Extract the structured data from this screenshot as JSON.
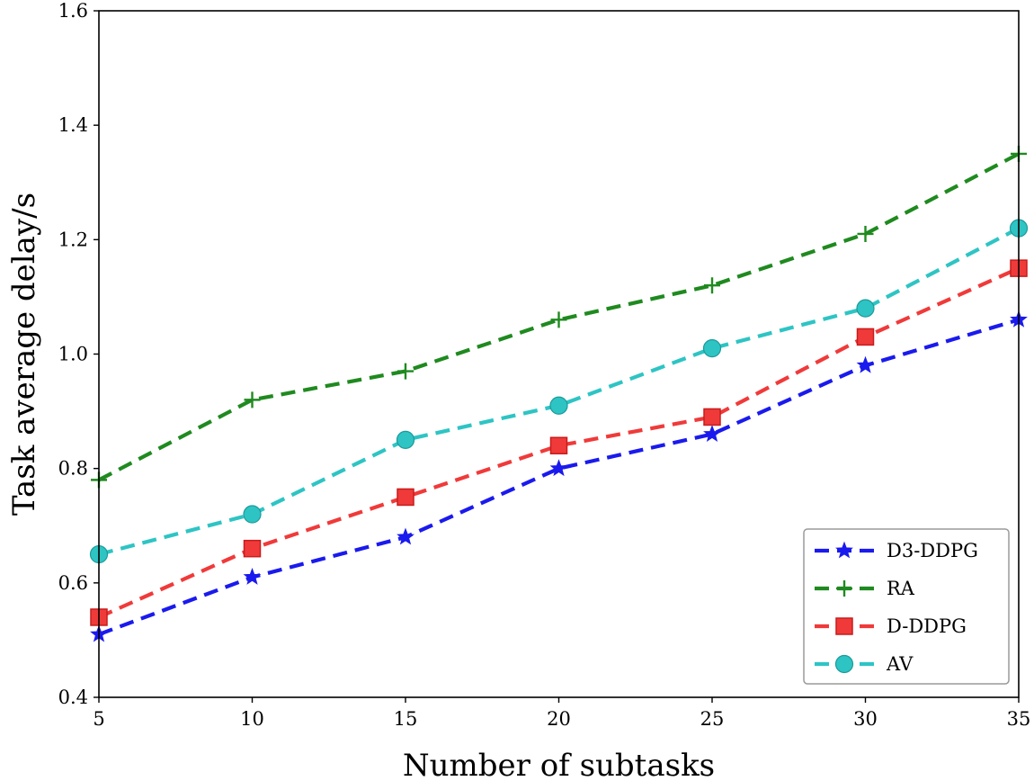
{
  "chart_data": {
    "type": "line",
    "title": "",
    "xlabel": "Number of subtasks",
    "ylabel": "Task average delay/s",
    "x": [
      5,
      10,
      15,
      20,
      25,
      30,
      35
    ],
    "xlim": [
      5,
      35
    ],
    "ylim": [
      0.4,
      1.6
    ],
    "xticks": [
      5,
      10,
      15,
      20,
      25,
      30,
      35
    ],
    "xtick_labels": [
      "5",
      "10",
      "15",
      "20",
      "25",
      "30",
      "35"
    ],
    "yticks": [
      0.4,
      0.6,
      0.8,
      1.0,
      1.2,
      1.4,
      1.6
    ],
    "ytick_labels": [
      "0.4",
      "0.6",
      "0.8",
      "1.0",
      "1.2",
      "1.4",
      "1.6"
    ],
    "grid": false,
    "legend_position": "bottom-right",
    "series": [
      {
        "name": "D3-DDPG",
        "color": "#1a1aee",
        "marker": "star",
        "values": [
          0.51,
          0.61,
          0.68,
          0.8,
          0.86,
          0.98,
          1.06
        ]
      },
      {
        "name": "RA",
        "color": "#1f8a1f",
        "marker": "plus",
        "values": [
          0.78,
          0.92,
          0.97,
          1.06,
          1.12,
          1.21,
          1.35
        ]
      },
      {
        "name": "D-DDPG",
        "color": "#f03a3a",
        "marker": "square",
        "values": [
          0.54,
          0.66,
          0.75,
          0.84,
          0.89,
          1.03,
          1.15
        ]
      },
      {
        "name": "AV",
        "color": "#2ec4c4",
        "marker": "circle",
        "values": [
          0.65,
          0.72,
          0.85,
          0.91,
          1.01,
          1.08,
          1.22
        ]
      }
    ]
  }
}
